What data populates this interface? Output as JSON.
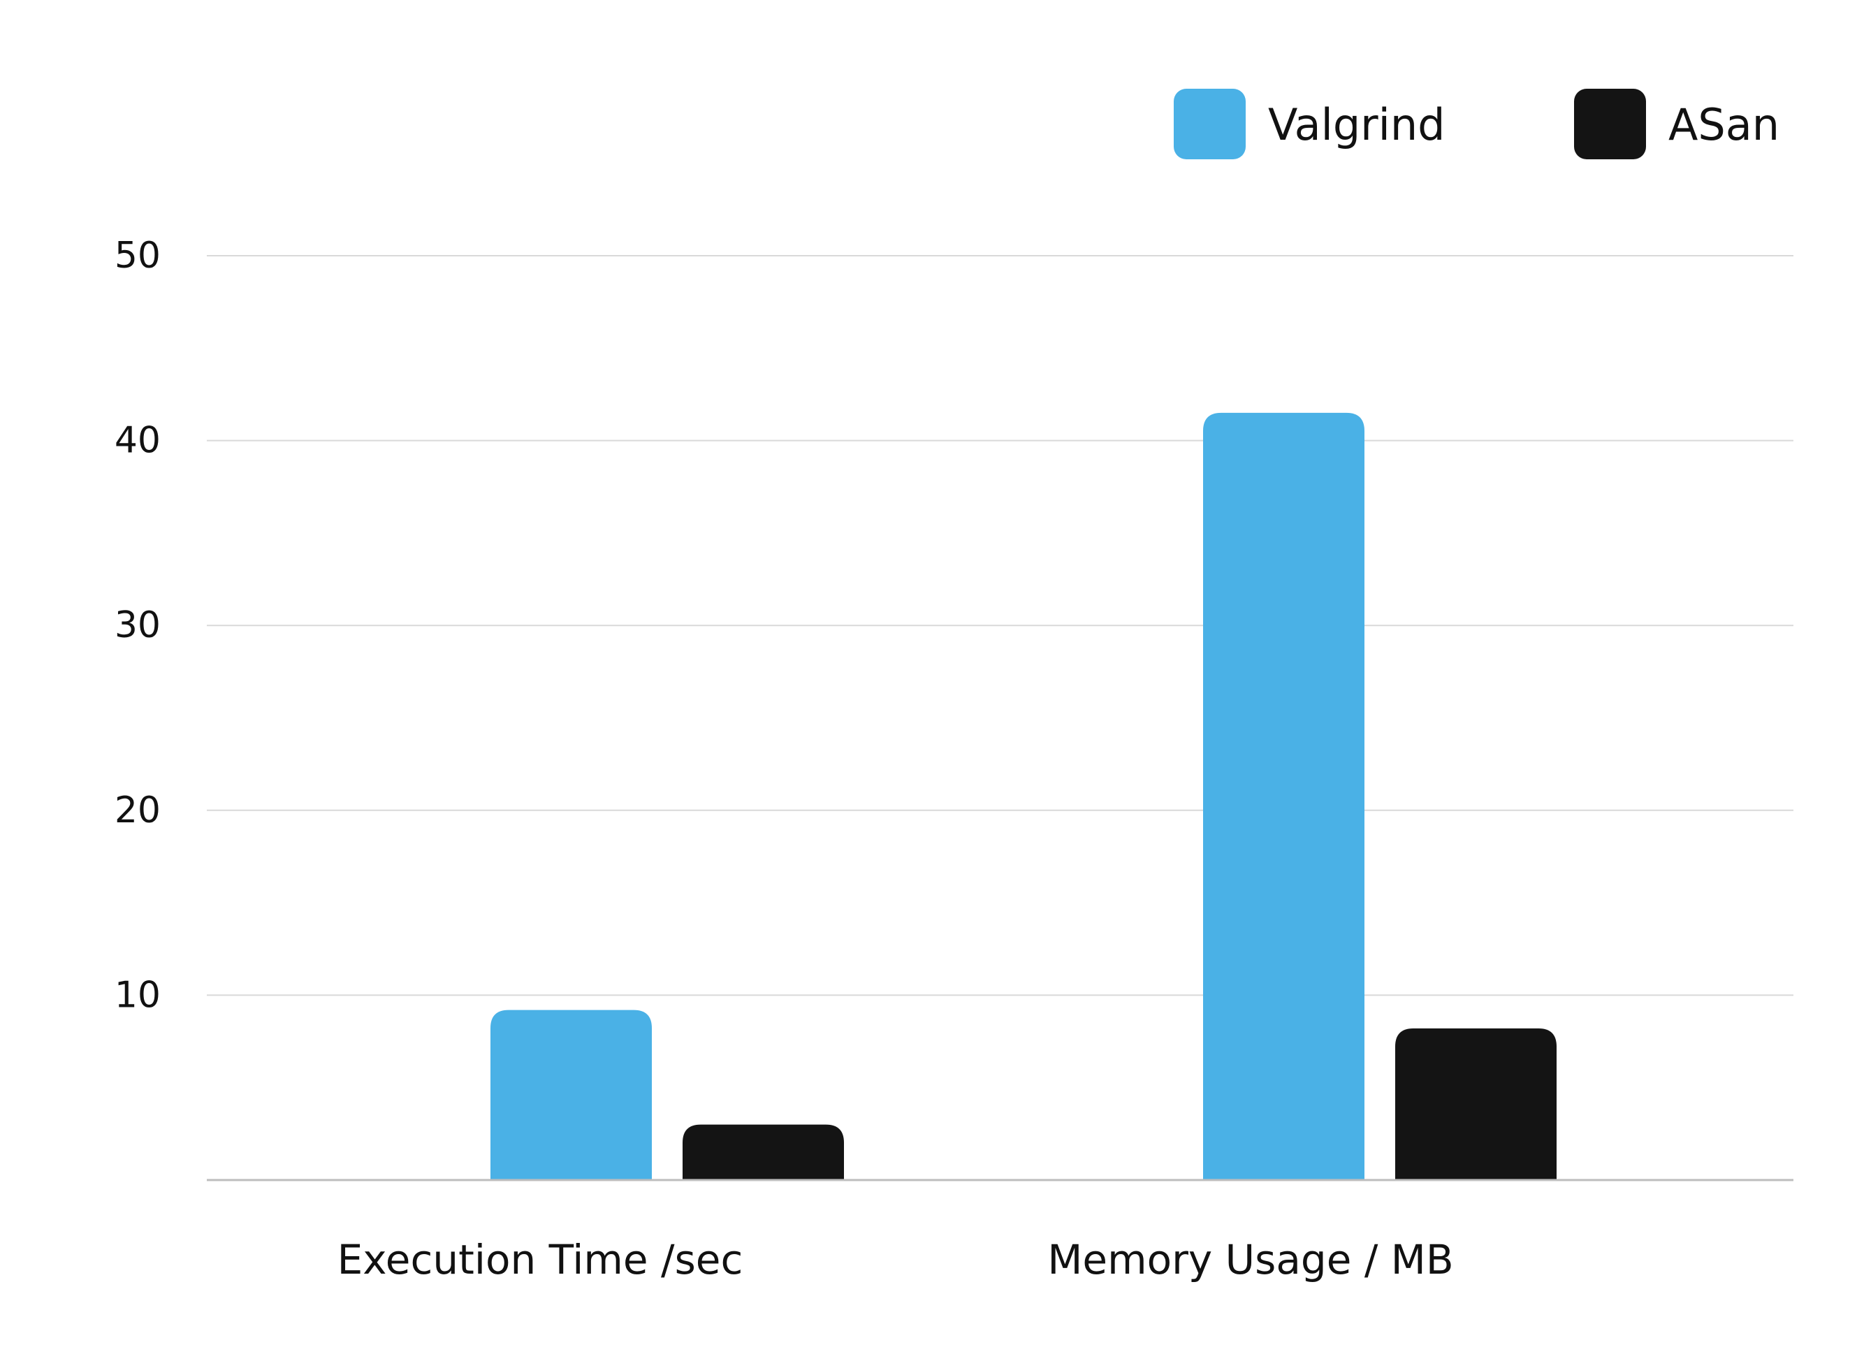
{
  "chart_data": {
    "type": "bar",
    "title": "",
    "xlabel": "",
    "ylabel": "",
    "categories": [
      "Execution Time /sec",
      "Memory Usage / MB"
    ],
    "series": [
      {
        "name": "Valgrind",
        "color": "#4AB1E6",
        "values": [
          9.2,
          41.5
        ]
      },
      {
        "name": "ASan",
        "color": "#141414",
        "values": [
          3.0,
          8.2
        ]
      }
    ],
    "yticks": [
      10,
      20,
      30,
      40,
      50
    ],
    "ylim": [
      0,
      50
    ],
    "grid": true,
    "legend_position": "top-right",
    "colors": {
      "gridline": "#D9D9D9",
      "axis": "#BDBDBD",
      "text": "#111111"
    }
  }
}
